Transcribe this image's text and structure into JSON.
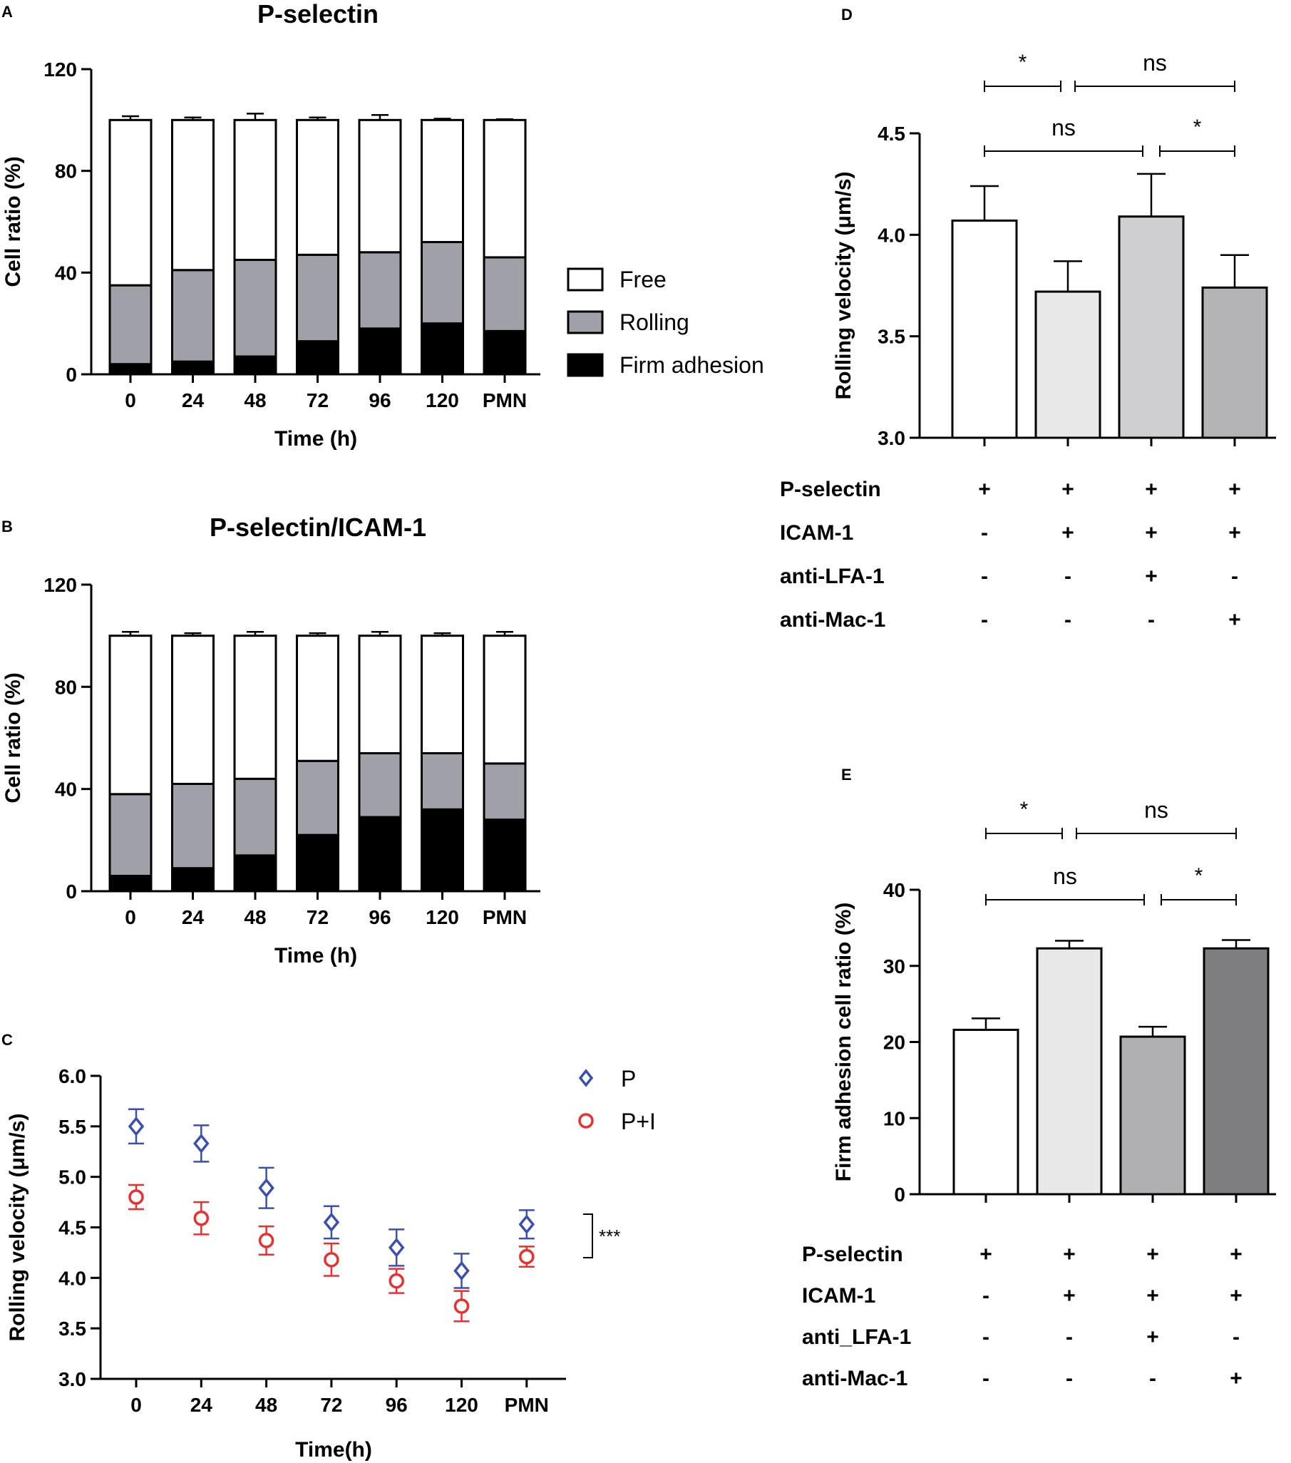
{
  "figure": {
    "panel_letters": {
      "a": "A",
      "b": "B",
      "c": "C",
      "d": "D",
      "e": "E"
    }
  },
  "chart_data": [
    {
      "panel": "A",
      "type": "bar",
      "stacked": true,
      "title": "P-selectin",
      "xlabel": "Time (h)",
      "ylabel": "Cell ratio (%)",
      "ylim": [
        0,
        120
      ],
      "yticks": [
        0,
        40,
        80,
        120
      ],
      "categories": [
        "0",
        "24",
        "48",
        "72",
        "96",
        "120",
        "PMN"
      ],
      "series": [
        {
          "name": "Firm adhesion",
          "color": "#000000",
          "values": [
            4,
            5,
            7,
            13,
            18,
            20,
            17
          ],
          "errors": [
            1,
            1.5,
            1,
            0.5,
            2,
            1.5,
            1.5
          ]
        },
        {
          "name": "Rolling",
          "color": "#a0a0a8",
          "values": [
            31,
            36,
            38,
            34,
            30,
            32,
            29
          ],
          "errors": [
            2.5,
            1,
            3.5,
            1.5,
            3.5,
            1,
            1.5
          ]
        },
        {
          "name": "Free",
          "color": "#ffffff",
          "values": [
            65,
            59,
            55,
            53,
            52,
            48,
            54
          ],
          "errors": [
            1.5,
            1,
            2.5,
            1,
            2,
            0.5,
            0.3
          ]
        }
      ],
      "legend": [
        "Free",
        "Rolling",
        "Firm adhesion"
      ]
    },
    {
      "panel": "B",
      "type": "bar",
      "stacked": true,
      "title": "P-selectin/ICAM-1",
      "xlabel": "Time (h)",
      "ylabel": "Cell ratio (%)",
      "ylim": [
        0,
        120
      ],
      "yticks": [
        0,
        40,
        80,
        120
      ],
      "categories": [
        "0",
        "24",
        "48",
        "72",
        "96",
        "120",
        "PMN"
      ],
      "series": [
        {
          "name": "Firm adhesion",
          "color": "#000000",
          "values": [
            6,
            9,
            14,
            22,
            29,
            32,
            28
          ],
          "errors": [
            1.5,
            1,
            0.5,
            1,
            1.5,
            1,
            1.5
          ]
        },
        {
          "name": "Rolling",
          "color": "#a0a0a8",
          "values": [
            32,
            33,
            30,
            29,
            25,
            22,
            22
          ],
          "errors": [
            1.5,
            1.5,
            2,
            1,
            2,
            1.5,
            1.5
          ]
        },
        {
          "name": "Free",
          "color": "#ffffff",
          "values": [
            62,
            58,
            56,
            49,
            46,
            46,
            50
          ],
          "errors": [
            1.5,
            1,
            1.5,
            1,
            1.5,
            1,
            1.5
          ]
        }
      ]
    },
    {
      "panel": "C",
      "type": "scatter",
      "xlabel": "Time(h)",
      "ylabel": "Rolling velocity (μm/s)",
      "ylim": [
        3.0,
        6.0
      ],
      "yticks": [
        "3.0",
        "3.5",
        "4.0",
        "4.5",
        "5.0",
        "5.5",
        "6.0"
      ],
      "categories": [
        "0",
        "24",
        "48",
        "72",
        "96",
        "120",
        "PMN"
      ],
      "series": [
        {
          "name": "P",
          "marker": "diamond",
          "color": "#3a4fb0",
          "values": [
            5.5,
            5.33,
            4.89,
            4.55,
            4.3,
            4.07,
            4.53
          ],
          "errors": [
            0.17,
            0.18,
            0.2,
            0.16,
            0.18,
            0.17,
            0.14
          ]
        },
        {
          "name": "P+I",
          "marker": "circle",
          "color": "#e8312e",
          "values": [
            4.8,
            4.59,
            4.37,
            4.18,
            3.97,
            3.72,
            4.21
          ],
          "errors": [
            0.12,
            0.16,
            0.14,
            0.16,
            0.12,
            0.15,
            0.1
          ]
        }
      ],
      "significance": "***"
    },
    {
      "panel": "D",
      "type": "bar",
      "ylabel": "Rolling velocity (μm/s)",
      "ylim": [
        3.0,
        4.5
      ],
      "yticks": [
        "3.0",
        "3.5",
        "4.0",
        "4.5"
      ],
      "values": [
        4.07,
        3.72,
        4.09,
        3.74
      ],
      "errors": [
        0.17,
        0.15,
        0.21,
        0.16
      ],
      "colors": [
        "#ffffff",
        "#e8e8e9",
        "#cfcfd1",
        "#b4b4b6"
      ],
      "comparisons": [
        {
          "from": 0,
          "to": 1,
          "label": "*",
          "level": 2
        },
        {
          "from": 1,
          "to": 3,
          "label": "ns",
          "level": 2
        },
        {
          "from": 0,
          "to": 2,
          "label": "ns",
          "level": 1
        },
        {
          "from": 2,
          "to": 3,
          "label": "*",
          "level": 1
        }
      ],
      "conditions": [
        {
          "label": "P-selectin",
          "values": [
            "+",
            "+",
            "+",
            "+"
          ]
        },
        {
          "label": "ICAM-1",
          "values": [
            "-",
            "+",
            "+",
            "+"
          ]
        },
        {
          "label": "anti-LFA-1",
          "values": [
            "-",
            "-",
            "+",
            "-"
          ]
        },
        {
          "label": "anti-Mac-1",
          "values": [
            "-",
            "-",
            "-",
            "+"
          ]
        }
      ]
    },
    {
      "panel": "E",
      "type": "bar",
      "ylabel": "Firm adhesion cell ratio (%)",
      "ylim": [
        0,
        40
      ],
      "yticks": [
        "0",
        "10",
        "20",
        "30",
        "40"
      ],
      "values": [
        21.6,
        32.3,
        20.7,
        32.3
      ],
      "errors": [
        1.5,
        1.0,
        1.3,
        1.1
      ],
      "colors": [
        "#ffffff",
        "#e8e8e9",
        "#b0b0b2",
        "#7e7e80"
      ],
      "comparisons": [
        {
          "from": 0,
          "to": 1,
          "label": "*",
          "level": 2
        },
        {
          "from": 1,
          "to": 3,
          "label": "ns",
          "level": 2
        },
        {
          "from": 0,
          "to": 2,
          "label": "ns",
          "level": 1
        },
        {
          "from": 2,
          "to": 3,
          "label": "*",
          "level": 1
        }
      ],
      "conditions": [
        {
          "label": "P-selectin",
          "values": [
            "+",
            "+",
            "+",
            "+"
          ]
        },
        {
          "label": "ICAM-1",
          "values": [
            "-",
            "+",
            "+",
            "+"
          ]
        },
        {
          "label": "anti_LFA-1",
          "values": [
            "-",
            "-",
            "+",
            "-"
          ]
        },
        {
          "label": "anti-Mac-1",
          "values": [
            "-",
            "-",
            "-",
            "+"
          ]
        }
      ]
    }
  ]
}
